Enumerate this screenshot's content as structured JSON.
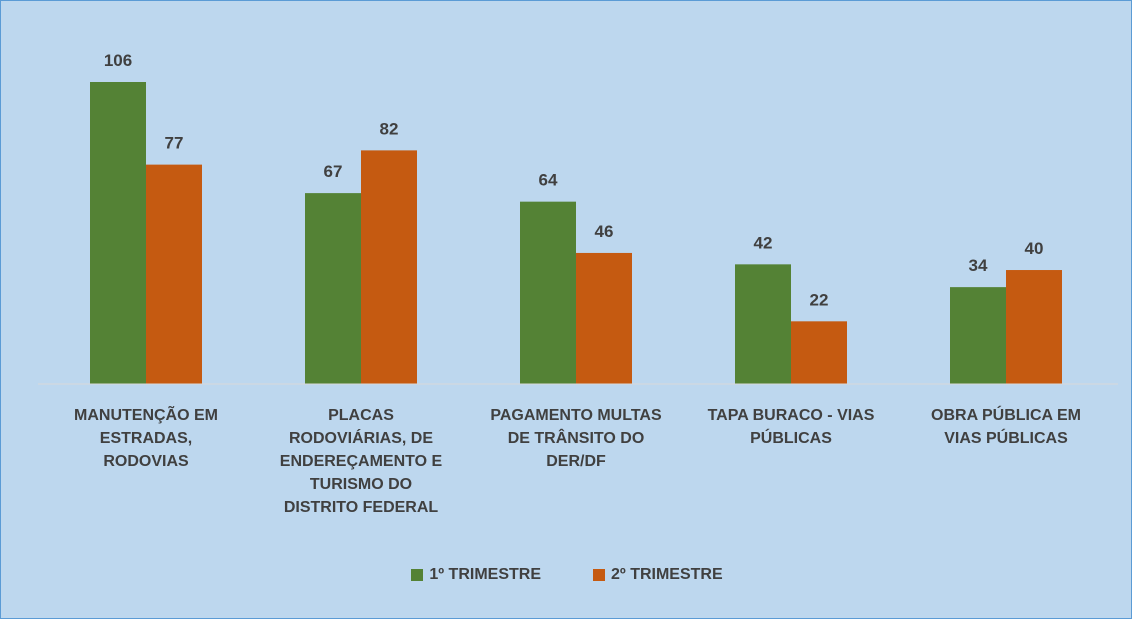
{
  "chart_data": {
    "type": "bar",
    "categories": [
      "MANUTENÇÃO EM ESTRADAS, RODOVIAS",
      "PLACAS RODOVIÁRIAS, DE ENDEREÇAMENTO E TURISMO DO DISTRITO FEDERAL",
      "PAGAMENTO MULTAS DE TRÂNSITO DO DER/DF",
      "TAPA BURACO - VIAS PÚBLICAS",
      "OBRA PÚBLICA EM VIAS PÚBLICAS"
    ],
    "series": [
      {
        "name": "1º TRIMESTRE",
        "color": "#548235",
        "values": [
          106,
          67,
          64,
          42,
          34
        ]
      },
      {
        "name": "2º TRIMESTRE",
        "color": "#c55a11",
        "values": [
          77,
          82,
          46,
          22,
          40
        ]
      }
    ],
    "legend": "bottom"
  }
}
